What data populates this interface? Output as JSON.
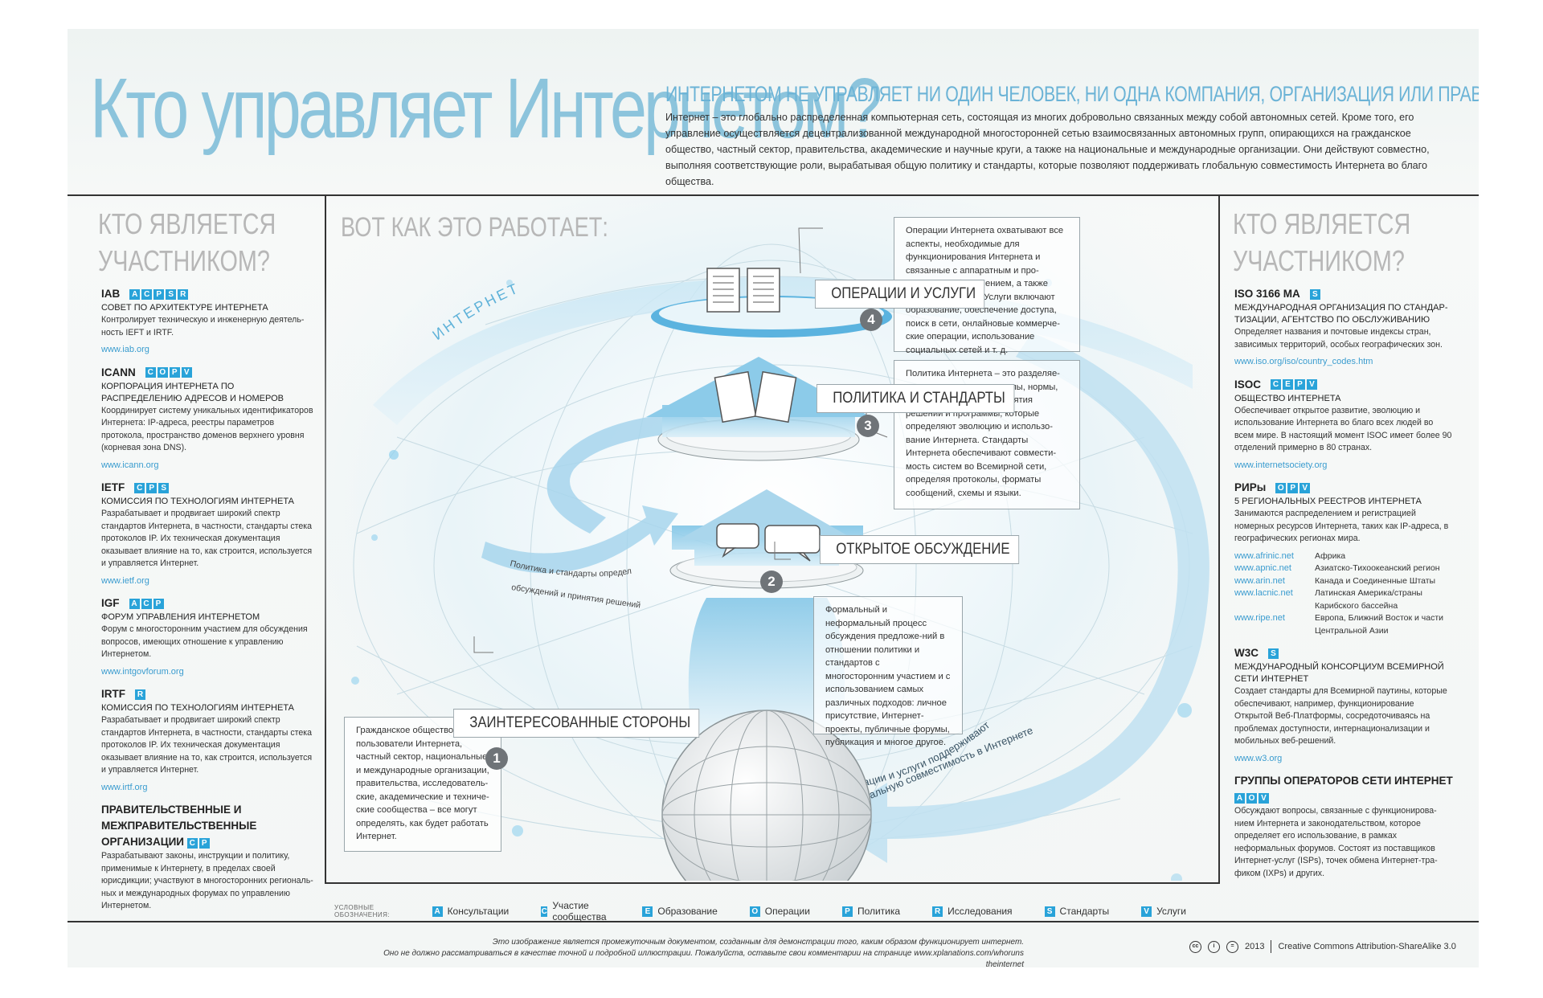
{
  "header": {
    "title": "Кто управляет Интернетом?",
    "subtitle": "ИНТЕРНЕТОМ НЕ УПРАВЛЯЕТ НИ ОДИН ЧЕЛОВЕК, НИ ОДНА КОМПАНИЯ, ОРГАНИЗАЦИЯ ИЛИ ПРАВИТЕЛЬСТВО.",
    "intro": "Интернет – это глобально распределенная компьютерная сеть, состоящая из многих добровольно связанных между собой автономных сетей. Кроме того, его управление осуществляется децентрализованной международной многосторонней сетью взаимосвязанных автономных групп, опирающихся на гражданское общество, частный сектор, правительства, академические и научные круги, а также на национальные и международные организации. Они действуют совместно, выполняя соответствующие роли, вырабатывая общую политику и стандарты, которые позволяют поддерживать глобальную совместимость Интернета во благо общества."
  },
  "left": {
    "heading_line1": "КТО ЯВЛЯЕТСЯ",
    "heading_line2": "УЧАСТНИКОМ?",
    "orgs": [
      {
        "name": "IAB",
        "codes": "ACPSR",
        "full": "СОВЕТ ПО АРХИТЕКТУРЕ ИНТЕРНЕТА",
        "desc": "Контролирует техническую и инженерную деятель-ность IEFT и IRTF.",
        "url": "www.iab.org"
      },
      {
        "name": "ICANN",
        "codes": "COPV",
        "full": "КОРПОРАЦИЯ ИНТЕРНЕТА ПО РАСПРЕДЕЛЕНИЮ АДРЕСОВ И НОМЕРОВ",
        "desc": "Координирует систему уникальных идентификаторов Интернета: IP-адреса, реестры параметров протокола, пространство доменов верхнего уровня (корневая зона DNS).",
        "url": "www.icann.org"
      },
      {
        "name": "IETF",
        "codes": "CPS",
        "full": "КОМИССИЯ ПО ТЕХНОЛОГИЯМ ИНТЕРНЕТА",
        "desc": "Разрабатывает и продвигает широкий спектр стандартов Интернета, в частности, стандарты стека протоколов IP. Их техническая документация оказывает влияние на то, как строится, используется и управляется Интернет.",
        "url": "www.ietf.org"
      },
      {
        "name": "IGF",
        "codes": "ACP",
        "full": "ФОРУМ УПРАВЛЕНИЯ ИНТЕРНЕТОМ",
        "desc": "Форум с многосторонним участием для обсуждения вопросов, имеющих отношение к управлению Интернетом.",
        "url": "www.intgovforum.org"
      },
      {
        "name": "IRTF",
        "codes": "R",
        "full": "КОМИССИЯ ПО ТЕХНОЛОГИЯМ ИНТЕРНЕТА",
        "desc": "Разрабатывает и продвигает широкий спектр стандартов Интернета, в частности, стандарты стека протоколов IP. Их техническая документация оказывает влияние на то, как строится, используется и управляется Интернет.",
        "url": "www.irtf.org"
      }
    ],
    "gov": {
      "name": "ПРАВИТЕЛЬСТВЕННЫЕ И МЕЖПРАВИТЕЛЬСТВЕННЫЕ ОРГАНИЗАЦИИ",
      "codes": "CP",
      "desc": "Разрабатывают законы, инструкции и политику, применимые к Интернету, в пределах своей юрисдикции; участвуют в многосторонних региональ-ных и международных форумах по управлению Интернетом."
    }
  },
  "right": {
    "heading_line1": "КТО ЯВЛЯЕТСЯ",
    "heading_line2": "УЧАСТНИКОМ?",
    "orgs": [
      {
        "name": "ISO 3166 MA",
        "codes": "S",
        "full": "МЕЖДУНАРОДНАЯ ОРГАНИЗАЦИЯ ПО СТАНДАР-ТИЗАЦИИ, АГЕНТСТВО ПО ОБСЛУЖИВАНИЮ",
        "desc": "Определяет названия и почтовые индексы стран, зависимых территорий, особых географических зон.",
        "url": "www.iso.org/iso/country_codes.htm"
      },
      {
        "name": "ISOC",
        "codes": "CEPV",
        "full": "ОБЩЕСТВО ИНТЕРНЕТА",
        "desc": "Обеспечивает открытое развитие, эволюцию и использование Интернета во благо всех людей во всем мире. В настоящий момент ISOC имеет более 90 отделений примерно в 80 странах.",
        "url": "www.internetsociety.org"
      }
    ],
    "rirs": {
      "name": "РИРы",
      "codes": "OPV",
      "full": "5 РЕГИОНАЛЬНЫХ РЕЕСТРОВ ИНТЕРНЕТА",
      "desc": "Занимаются распределением и регистрацией номерных ресурсов Интернета, таких как IP-адреса, в географических регионах мира.",
      "rows": [
        {
          "url": "www.afrinic.net",
          "region": "Африка"
        },
        {
          "url": "www.apnic.net",
          "region": "Азиатско-Тихоокеанский регион"
        },
        {
          "url": "www.arin.net",
          "region": "Канада и Соединенные Штаты"
        },
        {
          "url": "www.lacnic.net",
          "region": "Латинская Америка/страны Карибского бассейна"
        },
        {
          "url": "www.ripe.net",
          "region": "Европа, Ближний Восток и части Центральной Азии"
        }
      ]
    },
    "w3c": {
      "name": "W3C",
      "codes": "S",
      "full": "МЕЖДУНАРОДНЫЙ КОНСОРЦИУМ ВСЕМИРНОЙ СЕТИ ИНТЕРНЕТ",
      "desc": "Создает стандарты для Всемирной паутины, которые обеспечивают, например, функционирование Открытой Веб-Платформы, сосредоточиваясь на проблемах доступности, интернационализации и мобильных веб-решений.",
      "url": "www.w3.org"
    },
    "nog": {
      "name": "ГРУППЫ ОПЕРАТОРОВ СЕТИ ИНТЕРНЕТ",
      "codes": "AOV",
      "desc": "Обсуждают вопросы, связанные с функционирова-нием Интернета и законодательством, которое определяет его использование, в рамках неформальных форумов. Состоят из поставщиков Интернет-услуг (ISPs), точек обмена Интернет-тра-фиком (IXPs) и других."
    }
  },
  "diagram": {
    "heading": "ВОТ КАК ЭТО РАБОТАЕТ:",
    "internet_label": "ИНТЕРНЕТ",
    "steps": [
      {
        "num": "1",
        "label": "ЗАИНТЕРЕСОВАННЫЕ СТОРОНЫ",
        "text": "Гражданское общество и пользователи Интернета, частный сектор, национальные и международные организации, правительства, исследователь-ские, академические и техниче-ские сообщества – все могут определять, как будет работать Интернет."
      },
      {
        "num": "2",
        "label": "ОТКРЫТОЕ ОБСУЖДЕНИЕ",
        "text": "Формальный и неформальный процесс обсуждения предложе-ний в отношении политики и стандартов с многосторонним участием и с использованием самых различных подходов: личное присутствие, Интернет-проекты, публичные форумы, публикация и многое другое."
      },
      {
        "num": "3",
        "label": "ПОЛИТИКА И СТАНДАРТЫ",
        "text": "Политика Интернета – это разделяе-мые участниками принципы, нормы, правила, процедуры принятия решений и программы, которые определяют эволюцию и использо-вание Интернета. Стандарты Интернета обеспечивают совмести-мость систем во Всемирной сети, определяя протоколы, форматы сообщений, схемы и языки."
      },
      {
        "num": "4",
        "label": "ОПЕРАЦИИ И УСЛУГИ",
        "text": "Операции Интернета охватывают все аспекты, необходимые для функционирования Интернета и связанные с аппаратным и про-граммным обеспечением, а также инфраструктурой. Услуги включают образование, обеспечение доступа, поиск в сети, онлайновые коммерче-ские операции, использование социальных сетей и т. д."
      }
    ],
    "left_arrow_line1": "Политика и стандарты определяют направление",
    "left_arrow_line2": "обсуждений и принятия решений",
    "right_arrow_line1": "Операции и услуги поддерживают",
    "right_arrow_line2": "глобальную совместимость в Интернете"
  },
  "legend": {
    "title": "УСЛОВНЫЕ ОБОЗНАЧЕНИЯ:",
    "items": [
      {
        "code": "A",
        "label": "Консультации"
      },
      {
        "code": "C",
        "label": "Участие сообщества"
      },
      {
        "code": "E",
        "label": "Образование"
      },
      {
        "code": "O",
        "label": "Операции"
      },
      {
        "code": "P",
        "label": "Политика"
      },
      {
        "code": "R",
        "label": "Исследования"
      },
      {
        "code": "S",
        "label": "Стандарты"
      },
      {
        "code": "V",
        "label": "Услуги"
      }
    ]
  },
  "footer": {
    "note_line1": "Это изображение является промежуточным документом, созданным для демонстрации того, каким образом функционирует интернет.",
    "note_line2": "Оно не должно рассматриваться в качестве точной и подробной иллюстрации. Пожалуйста, оставьте свои комментарии на странице www.xplanations.com/whoruns theinternet",
    "year": "2013",
    "license": "Creative Commons Attribution-ShareAlike 3.0"
  },
  "colors": {
    "accent": "#29a3d9",
    "title": "#8cc4dc",
    "heading_gray": "#b7b7b7"
  }
}
